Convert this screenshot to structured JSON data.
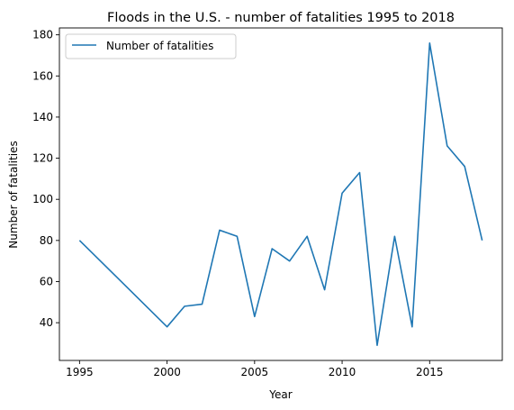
{
  "chart_data": {
    "type": "line",
    "title": "Floods in the U.S. - number of fatalities 1995 to 2018",
    "xlabel": "Year",
    "ylabel": "Number of fatalities",
    "xlim": [
      1993.85,
      2019.15
    ],
    "ylim": [
      21.65,
      183.35
    ],
    "xticks": [
      1995,
      2000,
      2005,
      2010,
      2015
    ],
    "yticks": [
      40,
      60,
      80,
      100,
      120,
      140,
      160,
      180
    ],
    "grid": false,
    "legend_position": "upper-left",
    "series": [
      {
        "name": "Number of fatalities",
        "color": "#1f77b4",
        "x": [
          1995,
          2000,
          2001,
          2002,
          2003,
          2004,
          2005,
          2006,
          2007,
          2008,
          2009,
          2010,
          2011,
          2012,
          2013,
          2014,
          2015,
          2016,
          2017,
          2018
        ],
        "y": [
          80,
          38,
          48,
          49,
          85,
          82,
          43,
          76,
          70,
          82,
          56,
          103,
          113,
          29,
          82,
          38,
          176,
          126,
          116,
          80
        ]
      }
    ]
  }
}
